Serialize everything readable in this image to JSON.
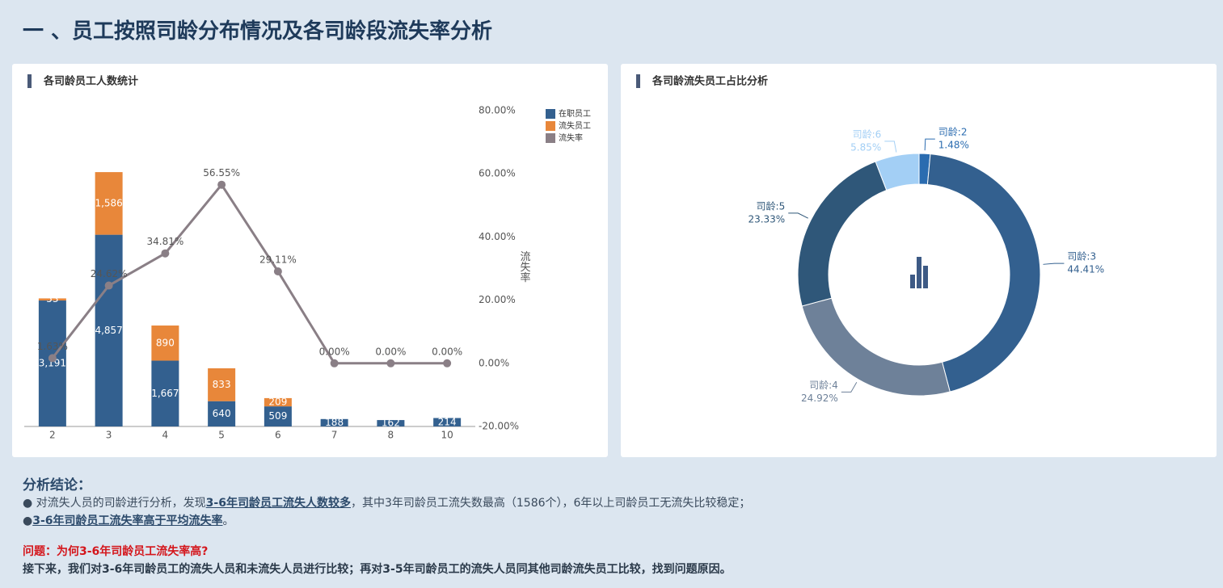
{
  "header": {
    "title": "一 、员工按照司龄分布情况及各司龄段流失率分析"
  },
  "chart_data": [
    {
      "type": "bar",
      "title": "各司龄员工人数统计",
      "stacked": true,
      "categories": [
        "2",
        "3",
        "4",
        "5",
        "6",
        "7",
        "8",
        "10"
      ],
      "series": [
        {
          "name": "在职员工",
          "color": "#33608f",
          "values": [
            3191,
            4857,
            1667,
            640,
            509,
            188,
            162,
            214
          ],
          "value_labels": [
            "3,191",
            "4,857",
            "1,667",
            "640",
            "509",
            "188",
            "162",
            "214"
          ]
        },
        {
          "name": "流失员工",
          "color": "#e8873a",
          "values": [
            53,
            1586,
            890,
            833,
            209,
            0,
            0,
            0
          ],
          "value_labels": [
            "53",
            "1,586",
            "890",
            "833",
            "209",
            null,
            null,
            null
          ]
        },
        {
          "name": "流失率",
          "type": "line",
          "axis": "y2",
          "color": "#8a7f86",
          "values": [
            1.63,
            24.62,
            34.81,
            56.55,
            29.11,
            0,
            0,
            0
          ],
          "value_labels": [
            "1.63%",
            "24.62%",
            "34.81%",
            "56.55%",
            "29.11%",
            "0.00%",
            "0.00%",
            "0.00%"
          ]
        }
      ],
      "ylim": [
        0,
        8000
      ],
      "y2lim": [
        -20,
        80
      ],
      "y2label": "流失率",
      "y2ticks": [
        {
          "value": -20,
          "label": "-20.00%"
        },
        {
          "value": 0,
          "label": "0.00%"
        },
        {
          "value": 20,
          "label": "20.00%"
        },
        {
          "value": 40,
          "label": "40.00%"
        },
        {
          "value": 60,
          "label": "60.00%"
        },
        {
          "value": 80,
          "label": "80.00%"
        }
      ],
      "legend": "top-right"
    },
    {
      "type": "pie",
      "title": "各司龄流失员工占比分析",
      "donut": true,
      "categories": [
        "司龄:2",
        "司龄:3",
        "司龄:4",
        "司龄:5",
        "司龄:6"
      ],
      "values": [
        1.48,
        44.41,
        24.92,
        23.33,
        5.85
      ],
      "value_labels": [
        "1.48%",
        "44.41%",
        "24.92%",
        "23.33%",
        "5.85%"
      ],
      "colors": [
        "#2b6cb0",
        "#33608f",
        "#6e8199",
        "#2f5779",
        "#a3cff5"
      ]
    }
  ],
  "conclusion": {
    "title": "分析结论：",
    "points": [
      [
        "● 对流失人员的司龄进行分析，发现",
        "3-6年司龄员工流失人数较多",
        "，其中3年司龄员工流失数最高（1586个），6年以上司龄员工无流失比较稳定；"
      ],
      [
        "●",
        "3-6年司龄员工流失率高于平均流失率",
        "。"
      ]
    ],
    "question": "问题：为何3-6年司龄员工流失率高?",
    "next_step": "接下来，我们对3-6年司龄员工的流失人员和未流失人员进行比较；再对3-5年司龄员工的流失人员同其他司龄流失员工比较，找到问题原因。"
  }
}
